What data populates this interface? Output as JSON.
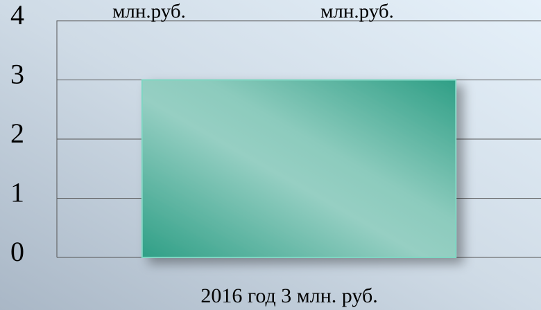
{
  "chart_data": {
    "type": "bar",
    "annotations": [
      "млн.руб.",
      "млн.руб."
    ],
    "categories": [
      "2016 год 3 млн. руб."
    ],
    "values": [
      3
    ],
    "color": "#2f9f86",
    "ylim": [
      0,
      4
    ],
    "yticks": [
      0,
      1,
      2,
      3,
      4
    ],
    "grid": true
  }
}
